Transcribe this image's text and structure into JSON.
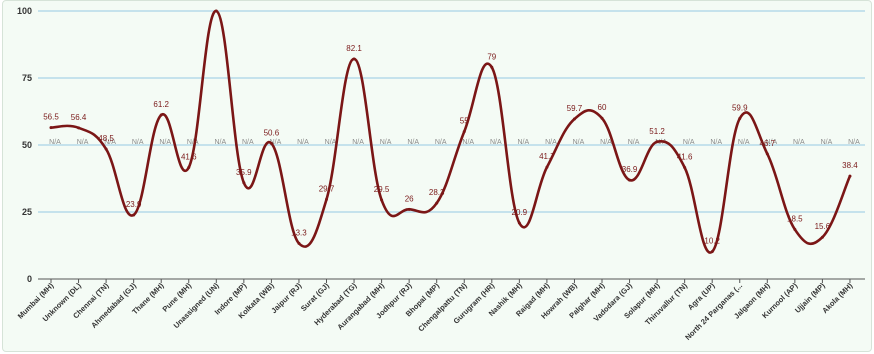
{
  "chart_data": {
    "type": "line",
    "categories": [
      "Mumbai (MH)",
      "Unknown (DL)",
      "Chennai (TN)",
      "Ahmedabad (GJ)",
      "Thane (MH)",
      "Pune (MH)",
      "Unassigned (UN)",
      "Indore (MP)",
      "Kolkata (WB)",
      "Jaipur (RJ)",
      "Surat (GJ)",
      "Hyderabad (TG)",
      "Aurangabad (MH)",
      "Jodhpur (RJ)",
      "Bhopal (MP)",
      "Chengalpattu (TN)",
      "Gurugram (HR)",
      "Nashik (MH)",
      "Raigad (MH)",
      "Howrah (WB)",
      "Palghar (MH)",
      "Vadodara (GJ)",
      "Solapur (MH)",
      "Thiruvallur (TN)",
      "Agra (UP)",
      "North 24 Parganas (...",
      "Jalgaon (MH)",
      "Kurnool (AP)",
      "Ujjain (MP)",
      "Akola (MH)"
    ],
    "values": [
      56.5,
      56.4,
      48.5,
      23.9,
      61.2,
      41.6,
      100,
      35.9,
      50.6,
      13.3,
      29.7,
      82.1,
      29.5,
      26,
      28.3,
      55,
      79,
      20.9,
      41.7,
      59.7,
      60,
      36.9,
      51.2,
      41.6,
      10.2,
      59.9,
      46.7,
      18.5,
      15.6,
      38.4
    ],
    "labels": [
      "56.5",
      "56.4",
      "48.5",
      "23.9",
      "61.2",
      "41.6",
      "",
      "35.9",
      "50.6",
      "13.3",
      "29.7",
      "82.1",
      "29.5",
      "26",
      "28.3",
      "55",
      "79",
      "20.9",
      "41.7",
      "59.7",
      "60",
      "36.9",
      "51.2",
      "41.6",
      "10.2",
      "59.9",
      "46.7",
      "18.5",
      "15.6",
      "38.4"
    ],
    "yticks": [
      "0",
      "25",
      "50",
      "75",
      "100"
    ],
    "ylim": [
      0,
      100
    ],
    "na_label": "N/A",
    "grid": true,
    "colors": {
      "line": "#7b1616",
      "grid": "#a9d3e8",
      "label": "#7a1a1a",
      "na": "#8a8a8a"
    }
  }
}
